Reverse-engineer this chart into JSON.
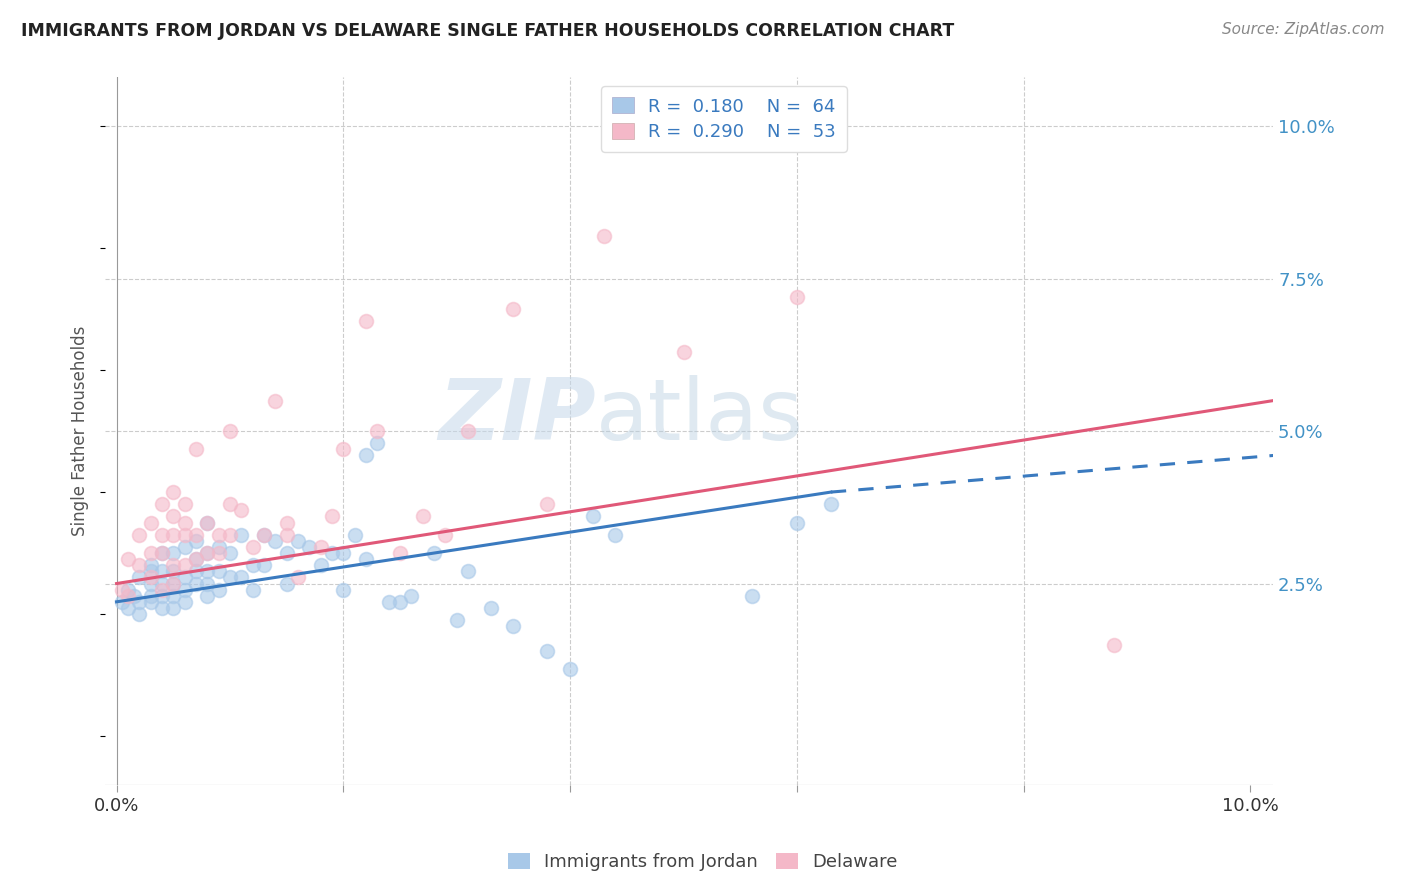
{
  "title": "IMMIGRANTS FROM JORDAN VS DELAWARE SINGLE FATHER HOUSEHOLDS CORRELATION CHART",
  "source": "Source: ZipAtlas.com",
  "ylabel": "Single Father Households",
  "xlim": [
    -0.001,
    0.102
  ],
  "ylim": [
    -0.008,
    0.108
  ],
  "yticks": [
    0.0,
    0.025,
    0.05,
    0.075,
    0.1
  ],
  "ytick_labels": [
    "",
    "2.5%",
    "5.0%",
    "7.5%",
    "10.0%"
  ],
  "xticks": [
    0.0,
    0.1
  ],
  "xtick_labels": [
    "0.0%",
    "10.0%"
  ],
  "color_blue": "#a8c8e8",
  "color_pink": "#f4b8c8",
  "color_line_blue": "#3a7abf",
  "color_line_pink": "#e05878",
  "watermark_zip": "ZIP",
  "watermark_atlas": "atlas",
  "blue_line_x0": 0.0,
  "blue_line_y0": 0.022,
  "blue_line_x1": 0.063,
  "blue_line_y1": 0.04,
  "blue_line_xdash_end": 0.102,
  "blue_line_ydash_end": 0.046,
  "pink_line_x0": 0.0,
  "pink_line_y0": 0.025,
  "pink_line_x1": 0.102,
  "pink_line_y1": 0.055,
  "blue_scatter_x": [
    0.0005,
    0.001,
    0.001,
    0.0015,
    0.002,
    0.002,
    0.002,
    0.003,
    0.003,
    0.003,
    0.003,
    0.003,
    0.004,
    0.004,
    0.004,
    0.004,
    0.004,
    0.005,
    0.005,
    0.005,
    0.005,
    0.005,
    0.006,
    0.006,
    0.006,
    0.006,
    0.007,
    0.007,
    0.007,
    0.007,
    0.008,
    0.008,
    0.008,
    0.008,
    0.008,
    0.009,
    0.009,
    0.009,
    0.01,
    0.01,
    0.011,
    0.011,
    0.012,
    0.012,
    0.013,
    0.013,
    0.014,
    0.015,
    0.015,
    0.016,
    0.017,
    0.018,
    0.019,
    0.02,
    0.02,
    0.021,
    0.022,
    0.022,
    0.023,
    0.024,
    0.025,
    0.026,
    0.028,
    0.03,
    0.031,
    0.033,
    0.035,
    0.038,
    0.04,
    0.042,
    0.044,
    0.056,
    0.06,
    0.063
  ],
  "blue_scatter_y": [
    0.022,
    0.021,
    0.024,
    0.023,
    0.02,
    0.022,
    0.026,
    0.022,
    0.023,
    0.025,
    0.027,
    0.028,
    0.021,
    0.023,
    0.025,
    0.027,
    0.03,
    0.021,
    0.023,
    0.025,
    0.027,
    0.03,
    0.022,
    0.024,
    0.026,
    0.031,
    0.025,
    0.027,
    0.029,
    0.032,
    0.023,
    0.025,
    0.027,
    0.03,
    0.035,
    0.024,
    0.027,
    0.031,
    0.026,
    0.03,
    0.026,
    0.033,
    0.024,
    0.028,
    0.028,
    0.033,
    0.032,
    0.025,
    0.03,
    0.032,
    0.031,
    0.028,
    0.03,
    0.024,
    0.03,
    0.033,
    0.029,
    0.046,
    0.048,
    0.022,
    0.022,
    0.023,
    0.03,
    0.019,
    0.027,
    0.021,
    0.018,
    0.014,
    0.011,
    0.036,
    0.033,
    0.023,
    0.035,
    0.038
  ],
  "pink_scatter_x": [
    0.0005,
    0.001,
    0.001,
    0.002,
    0.002,
    0.003,
    0.003,
    0.003,
    0.004,
    0.004,
    0.004,
    0.004,
    0.005,
    0.005,
    0.005,
    0.005,
    0.005,
    0.006,
    0.006,
    0.006,
    0.006,
    0.007,
    0.007,
    0.007,
    0.008,
    0.008,
    0.009,
    0.009,
    0.01,
    0.01,
    0.01,
    0.011,
    0.012,
    0.013,
    0.014,
    0.015,
    0.015,
    0.016,
    0.018,
    0.019,
    0.02,
    0.022,
    0.023,
    0.025,
    0.027,
    0.029,
    0.031,
    0.035,
    0.038,
    0.043,
    0.05,
    0.06,
    0.088
  ],
  "pink_scatter_y": [
    0.024,
    0.023,
    0.029,
    0.028,
    0.033,
    0.026,
    0.03,
    0.035,
    0.024,
    0.03,
    0.033,
    0.038,
    0.025,
    0.028,
    0.033,
    0.036,
    0.04,
    0.028,
    0.033,
    0.035,
    0.038,
    0.029,
    0.033,
    0.047,
    0.03,
    0.035,
    0.03,
    0.033,
    0.033,
    0.038,
    0.05,
    0.037,
    0.031,
    0.033,
    0.055,
    0.033,
    0.035,
    0.026,
    0.031,
    0.036,
    0.047,
    0.068,
    0.05,
    0.03,
    0.036,
    0.033,
    0.05,
    0.07,
    0.038,
    0.082,
    0.063,
    0.072,
    0.015
  ]
}
